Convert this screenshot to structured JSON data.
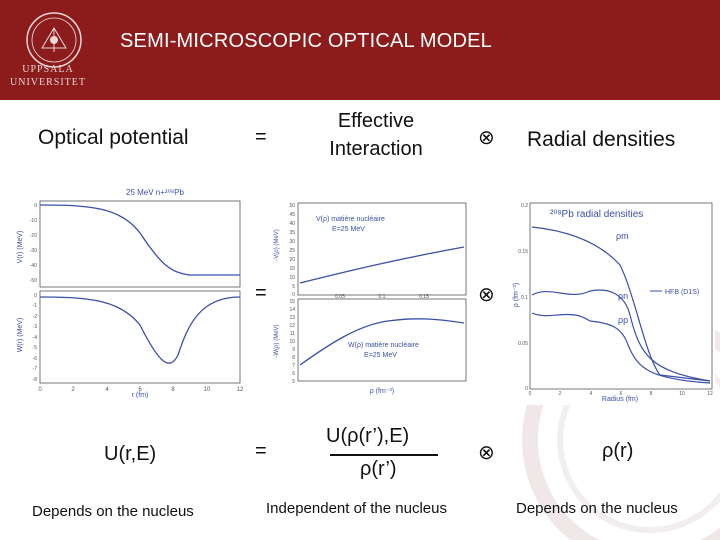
{
  "slide": {
    "title": "SEMI-MICROSCOPIC OPTICAL MODEL",
    "logo": {
      "line1": "UPPSALA",
      "line2": "UNIVERSITET"
    },
    "optical_potential_label": "Optical potential",
    "eq1": "=",
    "effective_interaction_line1": "Effective",
    "effective_interaction_line2": "Interaction",
    "otimes1": "⊗",
    "radial_densities_label": "Radial densities",
    "eq2": "=",
    "otimes2": "⊗",
    "u_label": "U(r,E)",
    "eq3": "=",
    "fraction_numerator": "U(ρ(r’),E)",
    "fraction_denominator": "ρ(r’)",
    "otimes3": "⊗",
    "rho_label": "ρ(r)",
    "note_left": "Depends on the nucleus",
    "note_middle": "Independent of the nucleus",
    "note_right": "Depends on the nucleus"
  },
  "plots": {
    "left": {
      "title": "25 MeV n+²⁰⁸Pb",
      "top_ylabel": "V(r) (MeV)",
      "bottom_ylabel": "W(r) (MeV)",
      "xlabel": "r (fm)",
      "x_ticks": [
        "0",
        "2",
        "4",
        "6",
        "8",
        "10",
        "12"
      ],
      "top_y_ticks": [
        "0",
        "-10",
        "-20",
        "-30",
        "-40",
        "-50"
      ],
      "bottom_y_ticks": [
        "0",
        "-1",
        "-2",
        "-3",
        "-4",
        "-5",
        "-6",
        "-7",
        "-8"
      ]
    },
    "middle": {
      "top_annotation_line1": "V(ρ) matière nucléaire",
      "top_annotation_line2": "E=25 MeV",
      "bottom_annotation_line1": "W(ρ) matière nucléaire",
      "bottom_annotation_line2": "E=25 MeV",
      "top_ylabel": "-V(ρ) (MeV)",
      "bottom_ylabel": "-W(ρ) (MeV)",
      "xlabel": "ρ (fm⁻³)",
      "x_ticks": [
        "0.05",
        "0.1",
        "0.15"
      ],
      "top_y_ticks": [
        "50",
        "45",
        "40",
        "35",
        "30",
        "25",
        "20",
        "15",
        "10",
        "5",
        "0"
      ],
      "bottom_y_ticks": [
        "15",
        "14",
        "13",
        "12",
        "11",
        "10",
        "9",
        "8",
        "7",
        "6",
        "5"
      ]
    },
    "right": {
      "title": "²⁰⁸Pb radial densities",
      "ylabel": "ρ (fm⁻³)",
      "xlabel": "Radius (fm)",
      "legend": "HFB (D1S)",
      "rho_m": "ρm",
      "rho_n": "ρn",
      "rho_p": "ρp",
      "x_ticks": [
        "0",
        "2",
        "4",
        "6",
        "8",
        "10",
        "12"
      ],
      "y_ticks": [
        "0.2",
        "0.15",
        "0.1",
        "0.05",
        "0"
      ]
    }
  }
}
